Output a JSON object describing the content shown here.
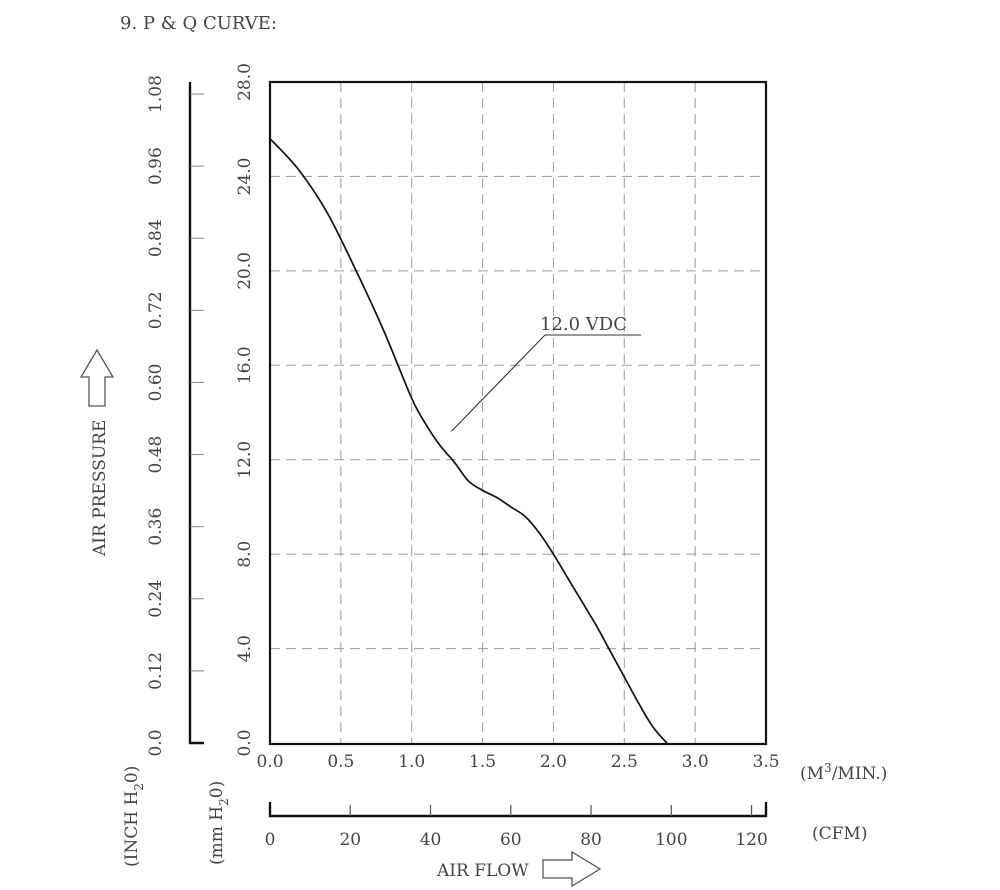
{
  "chart_data": {
    "type": "line",
    "title": "9. P & Q CURVE:",
    "x_primary": {
      "label": "(M3/MIN.)",
      "unit_prefix": "(M",
      "unit_sup": "3",
      "unit_suffix": "/MIN.)",
      "range": [
        0,
        3.5
      ],
      "ticks": [
        "0.0",
        "0.5",
        "1.0",
        "1.5",
        "2.0",
        "2.5",
        "3.0",
        "3.5"
      ]
    },
    "x_secondary": {
      "label": "(CFM)",
      "range": [
        0,
        123.6
      ],
      "ticks": [
        "0",
        "20",
        "40",
        "60",
        "80",
        "100",
        "120"
      ]
    },
    "x_title": "AIR FLOW",
    "y_primary": {
      "unit_prefix": "(mm H",
      "unit_sub": "2",
      "unit_suffix": "0)",
      "range": [
        0,
        28
      ],
      "ticks": [
        "0.0",
        "4.0",
        "8.0",
        "12.0",
        "16.0",
        "20.0",
        "24.0",
        "28.0"
      ]
    },
    "y_secondary": {
      "unit_prefix": "(INCH H",
      "unit_sub": "2",
      "unit_suffix": "0)",
      "range": [
        0,
        1.1
      ],
      "ticks": [
        "0.0",
        "0.12",
        "0.24",
        "0.36",
        "0.48",
        "0.60",
        "0.72",
        "0.84",
        "0.96",
        "1.08"
      ]
    },
    "y_title": "AIR PRESSURE",
    "grid": true,
    "series": [
      {
        "name": "12.0 VDC",
        "x": [
          0.0,
          0.2,
          0.4,
          0.6,
          0.8,
          1.0,
          1.1,
          1.2,
          1.3,
          1.4,
          1.5,
          1.6,
          1.7,
          1.8,
          1.9,
          2.0,
          2.1,
          2.2,
          2.3,
          2.4,
          2.5,
          2.6,
          2.7,
          2.8
        ],
        "y": [
          25.6,
          24.3,
          22.5,
          20.1,
          17.5,
          14.6,
          13.5,
          12.6,
          11.9,
          11.1,
          10.7,
          10.4,
          10.0,
          9.6,
          8.9,
          8.0,
          7.0,
          6.0,
          5.0,
          3.9,
          2.8,
          1.7,
          0.7,
          0.0
        ]
      }
    ],
    "annotation": {
      "text": "12.0 VDC",
      "x": 1.28,
      "y": 13.2
    }
  }
}
